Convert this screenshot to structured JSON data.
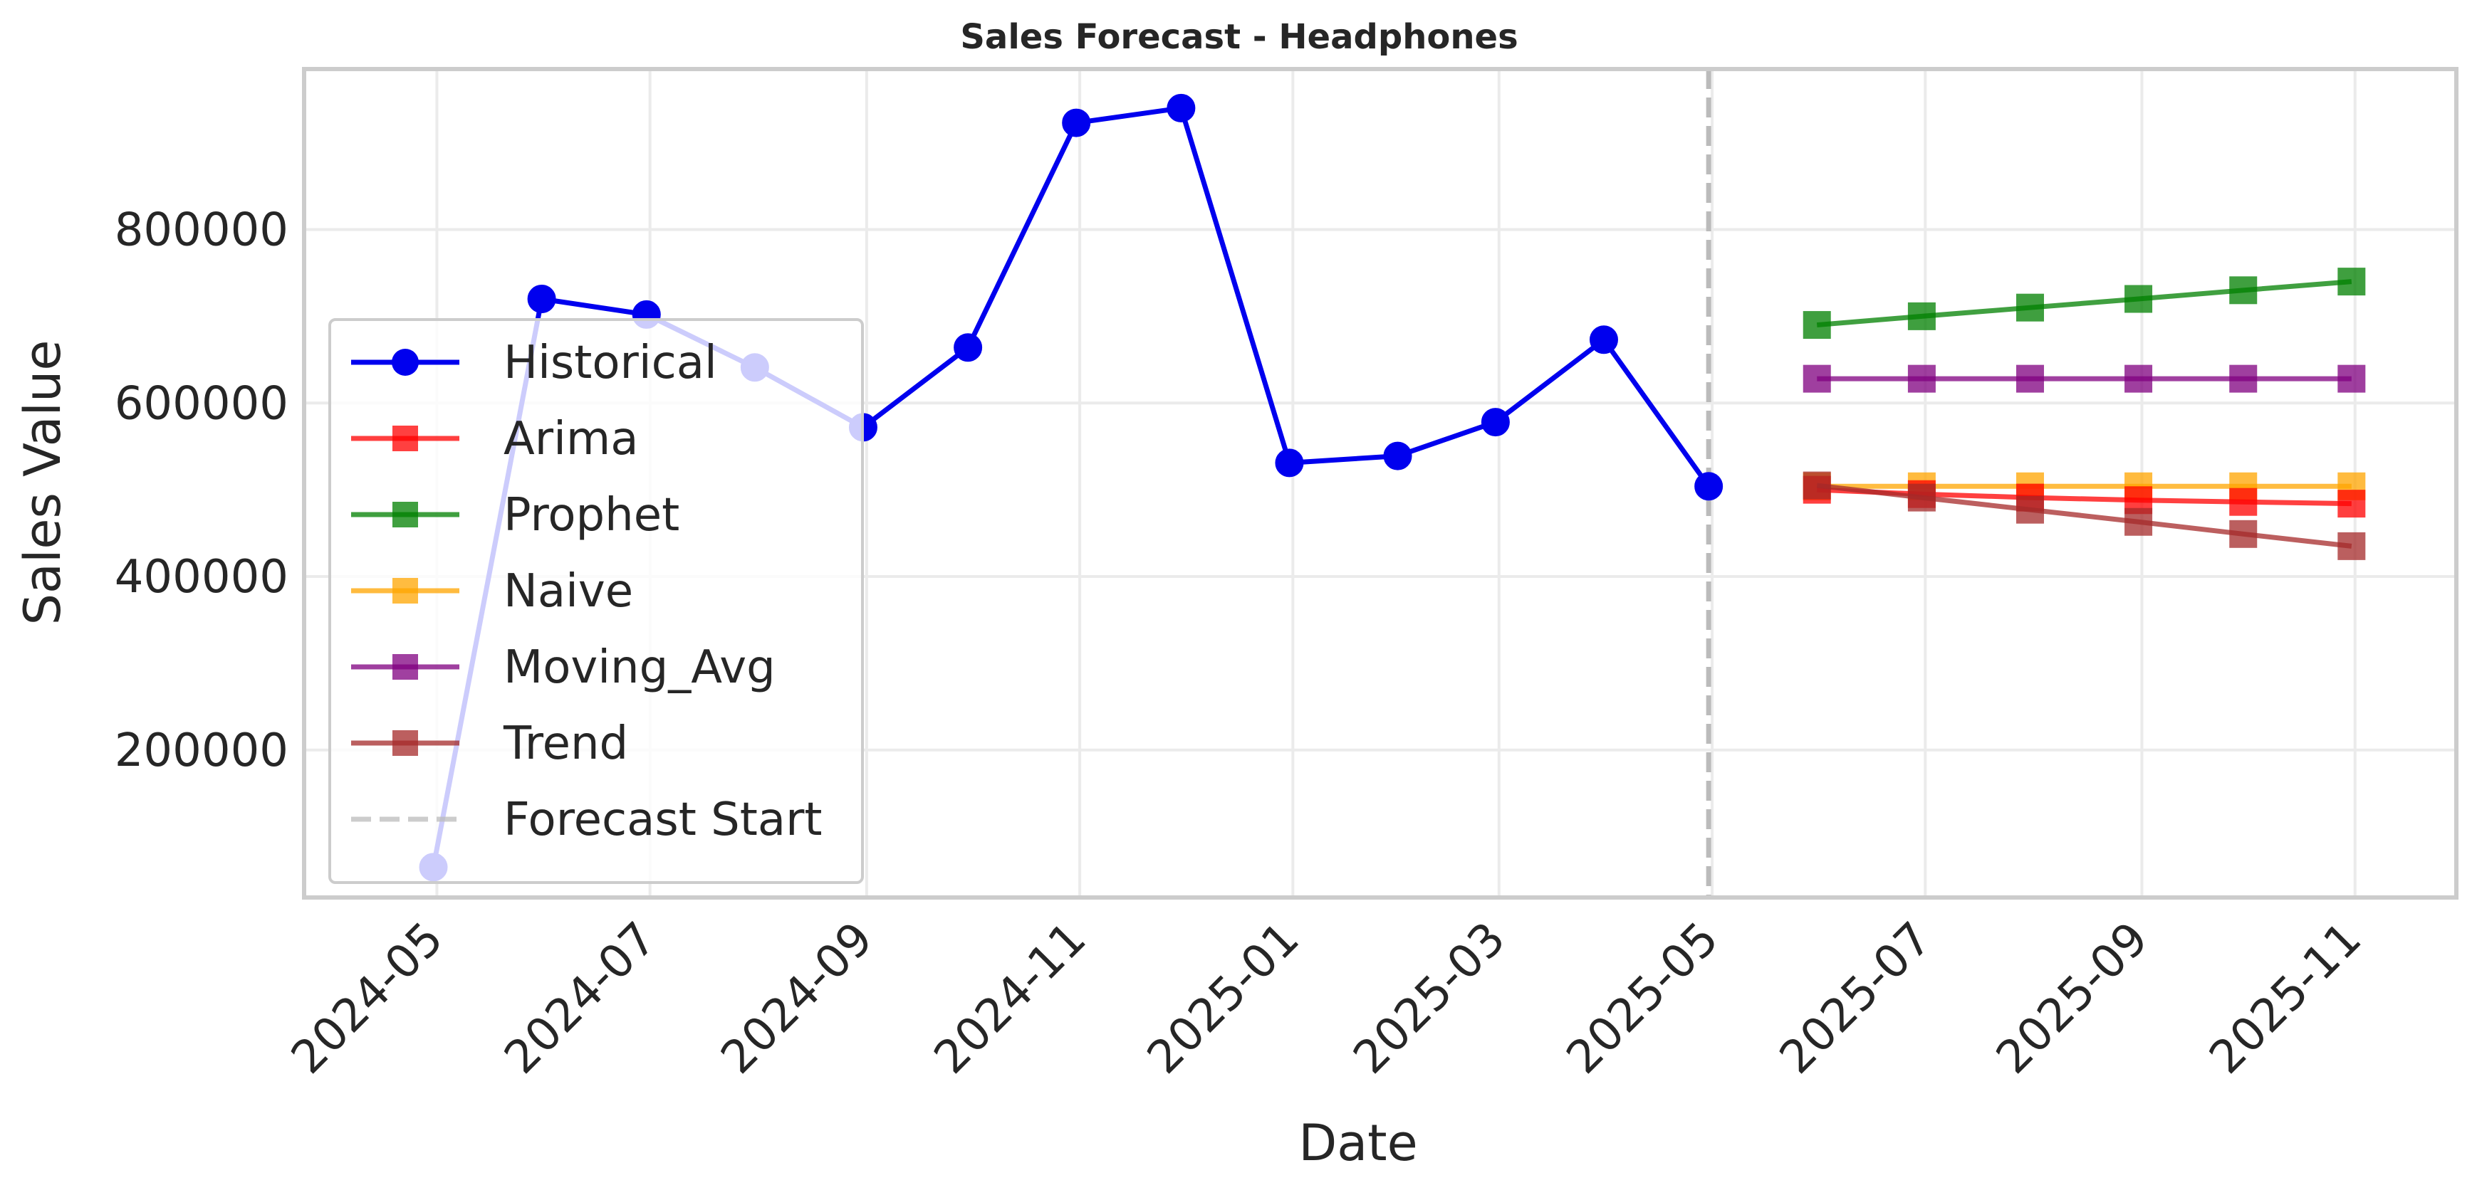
{
  "chart_data": {
    "type": "line",
    "title": "Sales Forecast - Headphones",
    "xlabel": "Date",
    "ylabel": "Sales Value",
    "xlim": [
      "2024-03-24",
      "2025-11-30"
    ],
    "ylim": [
      30000,
      985000
    ],
    "grid": true,
    "legend_position": "center-left",
    "x_ticks": [
      "2024-05",
      "2024-07",
      "2024-09",
      "2024-11",
      "2025-01",
      "2025-03",
      "2025-05",
      "2025-07",
      "2025-09",
      "2025-11"
    ],
    "y_ticks": [
      200000,
      400000,
      600000,
      800000
    ],
    "series": [
      {
        "name": "Historical",
        "color": "#0000ee",
        "marker": "circle",
        "x": [
          "2024-04-30",
          "2024-05-31",
          "2024-06-30",
          "2024-07-31",
          "2024-08-31",
          "2024-09-30",
          "2024-10-31",
          "2024-11-30",
          "2024-12-31",
          "2025-01-31",
          "2025-02-28",
          "2025-03-31",
          "2025-04-30"
        ],
        "values": [
          65000,
          720000,
          702000,
          641000,
          572000,
          664000,
          923000,
          940000,
          531000,
          539000,
          578000,
          673000,
          504000
        ]
      },
      {
        "name": "Arima",
        "color": "#ff0000",
        "marker": "square",
        "x": [
          "2025-05-31",
          "2025-06-30",
          "2025-07-31",
          "2025-08-31",
          "2025-09-30",
          "2025-10-31"
        ],
        "values": [
          500000,
          495000,
          491000,
          488000,
          486000,
          484000
        ]
      },
      {
        "name": "Prophet",
        "color": "#008000",
        "marker": "square",
        "x": [
          "2025-05-31",
          "2025-06-30",
          "2025-07-31",
          "2025-08-31",
          "2025-09-30",
          "2025-10-31"
        ],
        "values": [
          690000,
          700000,
          710000,
          720000,
          730000,
          740000
        ]
      },
      {
        "name": "Naive",
        "color": "#ffa500",
        "marker": "square",
        "x": [
          "2025-05-31",
          "2025-06-30",
          "2025-07-31",
          "2025-08-31",
          "2025-09-30",
          "2025-10-31"
        ],
        "values": [
          504000,
          504000,
          504000,
          504000,
          504000,
          504000
        ]
      },
      {
        "name": "Moving_Avg",
        "color": "#800080",
        "marker": "square",
        "x": [
          "2025-05-31",
          "2025-06-30",
          "2025-07-31",
          "2025-08-31",
          "2025-09-30",
          "2025-10-31"
        ],
        "values": [
          628000,
          628000,
          628000,
          628000,
          628000,
          628000
        ]
      },
      {
        "name": "Trend",
        "color": "#a52a2a",
        "marker": "square",
        "x": [
          "2025-05-31",
          "2025-06-30",
          "2025-07-31",
          "2025-08-31",
          "2025-09-30",
          "2025-10-31"
        ],
        "values": [
          505000,
          491000,
          477000,
          463000,
          449000,
          435000
        ]
      }
    ],
    "vline": {
      "name": "Forecast Start",
      "x": "2025-04-30",
      "color": "#bbbbbb"
    }
  }
}
